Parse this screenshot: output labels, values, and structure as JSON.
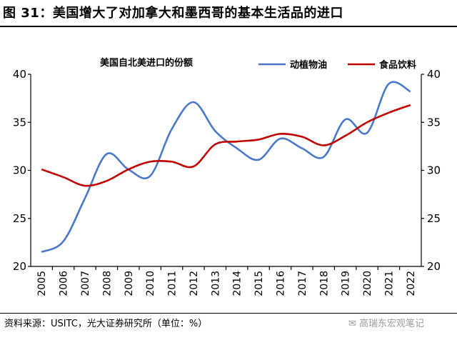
{
  "figure_title": "图 31：美国增大了对加拿大和墨西哥的基本生活品的进口",
  "source": "资料来源：USITC，光大证券研究所（单位：%）",
  "watermark": "高瑞东宏观笔记",
  "chart_data": {
    "type": "line",
    "title": "美国自北美进口的份额",
    "xlabel": "",
    "ylabel": "",
    "unit": "%",
    "categories": [
      "2005",
      "2006",
      "2007",
      "2008",
      "2009",
      "2010",
      "2011",
      "2012",
      "2013",
      "2014",
      "2015",
      "2016",
      "2017",
      "2018",
      "2019",
      "2020",
      "2021",
      "2022"
    ],
    "ylim": [
      20,
      40
    ],
    "yticks": [
      20,
      25,
      30,
      35,
      40
    ],
    "y2lim": [
      20,
      40
    ],
    "legend_position": "top-right",
    "grid": false,
    "smooth": true,
    "series": [
      {
        "name": "动植物油",
        "color": "#4a78c8",
        "axis": "left",
        "values": [
          21.5,
          22.6,
          27.1,
          31.7,
          30.1,
          29.4,
          34.3,
          37.1,
          34.1,
          32.3,
          31.1,
          33.3,
          32.3,
          31.4,
          35.3,
          33.9,
          39.0,
          38.2
        ]
      },
      {
        "name": "食品饮料",
        "color": "#c00000",
        "axis": "right",
        "values": [
          30.1,
          29.3,
          28.4,
          28.9,
          30.1,
          30.9,
          30.9,
          30.4,
          32.7,
          33.0,
          33.2,
          33.8,
          33.5,
          32.6,
          33.6,
          35.0,
          36.0,
          36.8
        ]
      }
    ]
  }
}
